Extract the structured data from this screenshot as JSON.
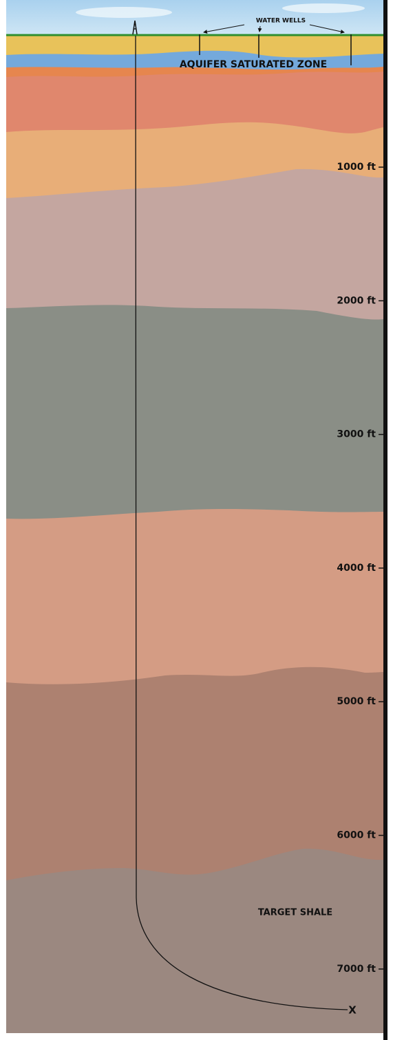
{
  "labels": {
    "water_wells": "WATER WELLS",
    "aquifer": "AQUIFER SATURATED ZONE",
    "target": "TARGET SHALE",
    "target_marker": "X"
  },
  "depth_labels": [
    "1000 ft",
    "2000 ft",
    "3000 ft",
    "4000 ft",
    "5000 ft",
    "6000 ft",
    "7000 ft"
  ]
}
